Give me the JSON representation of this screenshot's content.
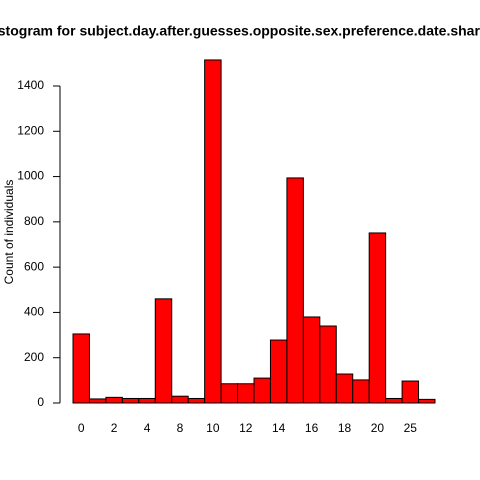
{
  "chart_data": {
    "type": "bar",
    "title": "Histogram for subject.day.after.guesses.opposite.sex.preference.date.shared",
    "ylabel": "Count of individuals",
    "categories": [
      "0",
      null,
      "2",
      null,
      "4",
      null,
      "8",
      null,
      "10",
      null,
      "12",
      null,
      "14",
      null,
      "16",
      null,
      "18",
      null,
      "20",
      null,
      "25",
      null
    ],
    "values": [
      305,
      18,
      25,
      20,
      20,
      460,
      30,
      20,
      1515,
      85,
      85,
      110,
      278,
      994,
      380,
      340,
      128,
      102,
      751,
      20,
      97,
      16
    ],
    "color": "#ff0000",
    "ylim": [
      0,
      1600
    ],
    "yticks": [
      0,
      200,
      400,
      600,
      800,
      1000,
      1200,
      1400
    ],
    "grid": false
  }
}
